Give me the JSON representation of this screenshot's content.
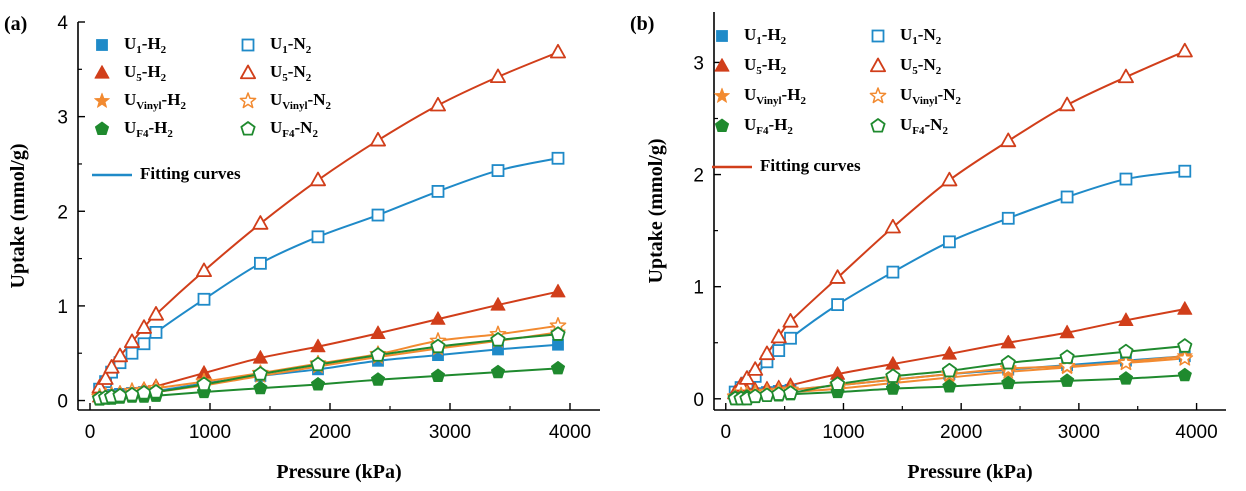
{
  "colors": {
    "H1": "#1f8ac8",
    "U5": "#d13e1a",
    "Vinyl": "#f28a30",
    "F4": "#1f8a2e",
    "fit_a": "#1f8ac8",
    "fit_b": "#d13e1a"
  },
  "chart_data": [
    {
      "panel_label": "(a)",
      "type": "scatter",
      "xlabel": "Pressure (kPa)",
      "ylabel": "Uptake (mmol/g)",
      "xlim": [
        -100,
        4250
      ],
      "ylim": [
        -0.1,
        4.0
      ],
      "xticks": [
        0,
        1000,
        2000,
        3000,
        4000
      ],
      "yticks": [
        0,
        1,
        2,
        3,
        4
      ],
      "legend_position": "top-left",
      "fit_legend_label": "Fitting curves",
      "fit_color_key": "fit_a",
      "x": [
        80,
        130,
        180,
        250,
        350,
        450,
        550,
        950,
        1420,
        1900,
        2400,
        2900,
        3400,
        3900
      ],
      "series": [
        {
          "name": "U1-H2",
          "label": {
            "base": "U",
            "sub1": "1",
            "mid": "-H",
            "sub2": "2"
          },
          "marker": "square",
          "filled": true,
          "colorKey": "H1",
          "y": [
            0.04,
            0.05,
            0.06,
            0.07,
            0.08,
            0.09,
            0.1,
            0.18,
            0.26,
            0.33,
            0.42,
            0.48,
            0.54,
            0.59
          ]
        },
        {
          "name": "U1-N2",
          "label": {
            "base": "U",
            "sub1": "1",
            "mid": "-N",
            "sub2": "2"
          },
          "marker": "square",
          "filled": false,
          "colorKey": "H1",
          "y": [
            0.12,
            0.2,
            0.3,
            0.4,
            0.5,
            0.6,
            0.72,
            1.07,
            1.45,
            1.73,
            1.96,
            2.21,
            2.43,
            2.56
          ]
        },
        {
          "name": "U5-H2",
          "label": {
            "base": "U",
            "sub1": "5",
            "mid": "-H",
            "sub2": "2"
          },
          "marker": "triangle",
          "filled": true,
          "colorKey": "U5",
          "y": [
            0.04,
            0.05,
            0.06,
            0.08,
            0.1,
            0.12,
            0.15,
            0.29,
            0.45,
            0.57,
            0.71,
            0.86,
            1.01,
            1.15
          ]
        },
        {
          "name": "U5-N2",
          "label": {
            "base": "U",
            "sub1": "5",
            "mid": "-N",
            "sub2": "2"
          },
          "marker": "triangle",
          "filled": false,
          "colorKey": "U5",
          "y": [
            0.14,
            0.23,
            0.35,
            0.47,
            0.62,
            0.77,
            0.91,
            1.37,
            1.87,
            2.33,
            2.75,
            3.12,
            3.42,
            3.68
          ]
        },
        {
          "name": "UVinyl-H2",
          "label": {
            "base": "U",
            "sub1": "Vinyl",
            "mid": "-H",
            "sub2": "2"
          },
          "marker": "star",
          "filled": true,
          "colorKey": "Vinyl",
          "y": [
            0.02,
            0.03,
            0.04,
            0.05,
            0.06,
            0.08,
            0.09,
            0.16,
            0.26,
            0.36,
            0.46,
            0.55,
            0.63,
            0.72
          ]
        },
        {
          "name": "UVinyl-N2",
          "label": {
            "base": "U",
            "sub1": "Vinyl",
            "mid": "-N",
            "sub2": "2"
          },
          "marker": "star",
          "filled": false,
          "colorKey": "Vinyl",
          "y": [
            0.04,
            0.05,
            0.06,
            0.07,
            0.1,
            0.11,
            0.13,
            0.2,
            0.29,
            0.39,
            0.49,
            0.63,
            0.7,
            0.79
          ]
        },
        {
          "name": "UF4-H2",
          "label": {
            "base": "U",
            "sub1": "F4",
            "mid": "-H",
            "sub2": "2"
          },
          "marker": "pentagon",
          "filled": true,
          "colorKey": "F4",
          "y": [
            0.01,
            0.02,
            0.02,
            0.03,
            0.04,
            0.04,
            0.05,
            0.09,
            0.13,
            0.17,
            0.22,
            0.26,
            0.3,
            0.34
          ]
        },
        {
          "name": "UF4-N2",
          "label": {
            "base": "U",
            "sub1": "F4",
            "mid": "-N",
            "sub2": "2"
          },
          "marker": "pentagon",
          "filled": false,
          "colorKey": "F4",
          "y": [
            0.02,
            0.03,
            0.04,
            0.05,
            0.06,
            0.08,
            0.09,
            0.17,
            0.28,
            0.38,
            0.48,
            0.57,
            0.64,
            0.7
          ]
        }
      ]
    },
    {
      "panel_label": "(b)",
      "type": "scatter",
      "xlabel": "Pressure (kPa)",
      "ylabel": "Uptake (mmol/g)",
      "xlim": [
        -100,
        4250
      ],
      "ylim": [
        -0.1,
        3.45
      ],
      "xticks": [
        0,
        1000,
        2000,
        3000,
        4000
      ],
      "yticks": [
        0,
        1,
        2,
        3
      ],
      "legend_position": "top-left",
      "fit_legend_label": "Fitting curves",
      "fit_color_key": "fit_b",
      "x": [
        80,
        130,
        180,
        250,
        350,
        450,
        550,
        950,
        1420,
        1900,
        2400,
        2900,
        3400,
        3900
      ],
      "series": [
        {
          "name": "U1-H2",
          "label": {
            "base": "U",
            "sub1": "1",
            "mid": "-H",
            "sub2": "2"
          },
          "marker": "square",
          "filled": true,
          "colorKey": "H1",
          "y": [
            0.02,
            0.03,
            0.04,
            0.05,
            0.06,
            0.07,
            0.08,
            0.12,
            0.17,
            0.22,
            0.26,
            0.3,
            0.34,
            0.38
          ]
        },
        {
          "name": "U1-N2",
          "label": {
            "base": "U",
            "sub1": "1",
            "mid": "-N",
            "sub2": "2"
          },
          "marker": "square",
          "filled": false,
          "colorKey": "H1",
          "y": [
            0.06,
            0.1,
            0.14,
            0.2,
            0.33,
            0.43,
            0.54,
            0.84,
            1.13,
            1.4,
            1.61,
            1.8,
            1.96,
            2.03
          ]
        },
        {
          "name": "U5-H2",
          "label": {
            "base": "U",
            "sub1": "5",
            "mid": "-H",
            "sub2": "2"
          },
          "marker": "triangle",
          "filled": true,
          "colorKey": "U5",
          "y": [
            0.05,
            0.06,
            0.07,
            0.08,
            0.09,
            0.1,
            0.12,
            0.22,
            0.31,
            0.4,
            0.5,
            0.59,
            0.7,
            0.8
          ]
        },
        {
          "name": "U5-N2",
          "label": {
            "base": "U",
            "sub1": "5",
            "mid": "-N",
            "sub2": "2"
          },
          "marker": "triangle",
          "filled": false,
          "colorKey": "U5",
          "y": [
            0.05,
            0.12,
            0.18,
            0.26,
            0.4,
            0.55,
            0.69,
            1.08,
            1.53,
            1.95,
            2.3,
            2.62,
            2.87,
            3.1
          ]
        },
        {
          "name": "UVinyl-H2",
          "label": {
            "base": "U",
            "sub1": "Vinyl",
            "mid": "-H",
            "sub2": "2"
          },
          "marker": "star",
          "filled": true,
          "colorKey": "Vinyl",
          "y": [
            0.01,
            0.02,
            0.03,
            0.04,
            0.05,
            0.06,
            0.06,
            0.09,
            0.14,
            0.19,
            0.24,
            0.28,
            0.33,
            0.38
          ]
        },
        {
          "name": "UVinyl-N2",
          "label": {
            "base": "U",
            "sub1": "Vinyl",
            "mid": "-N",
            "sub2": "2"
          },
          "marker": "star",
          "filled": false,
          "colorKey": "Vinyl",
          "y": [
            0.02,
            0.03,
            0.04,
            0.05,
            0.06,
            0.07,
            0.08,
            0.12,
            0.17,
            0.22,
            0.27,
            0.29,
            0.32,
            0.36
          ]
        },
        {
          "name": "UF4-H2",
          "label": {
            "base": "U",
            "sub1": "F4",
            "mid": "-H",
            "sub2": "2"
          },
          "marker": "pentagon",
          "filled": true,
          "colorKey": "F4",
          "y": [
            0.01,
            0.01,
            0.02,
            0.02,
            0.03,
            0.03,
            0.04,
            0.06,
            0.09,
            0.11,
            0.14,
            0.16,
            0.18,
            0.21
          ]
        },
        {
          "name": "UF4-N2",
          "label": {
            "base": "U",
            "sub1": "F4",
            "mid": "-N",
            "sub2": "2"
          },
          "marker": "pentagon",
          "filled": false,
          "colorKey": "F4",
          "y": [
            0.0,
            0.0,
            0.0,
            0.02,
            0.03,
            0.04,
            0.05,
            0.13,
            0.2,
            0.25,
            0.32,
            0.37,
            0.42,
            0.47
          ]
        }
      ]
    }
  ]
}
